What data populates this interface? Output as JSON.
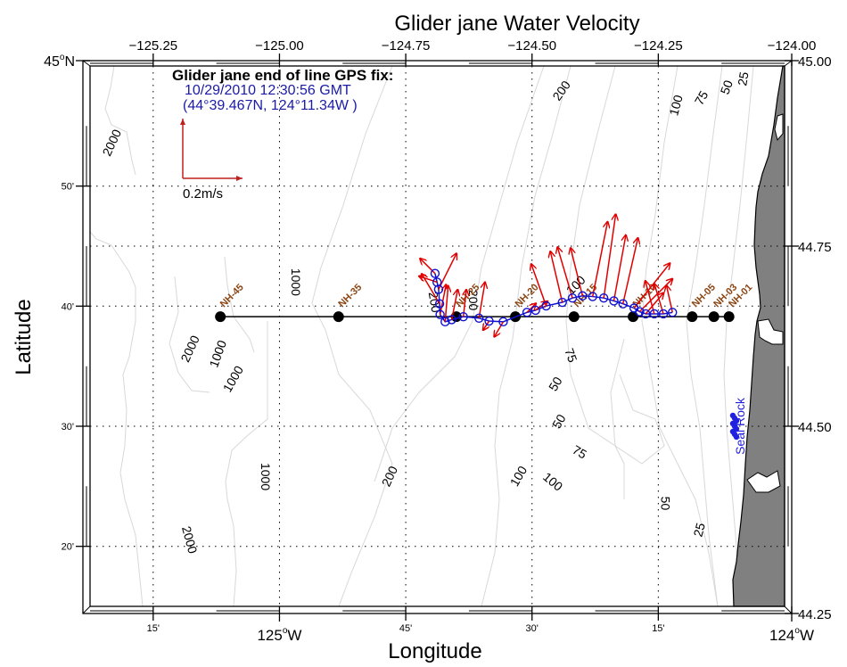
{
  "title": "Glider jane Water Velocity",
  "axes": {
    "xlabel": "Longitude",
    "ylabel": "Latitude",
    "lon_range": [
      -125.375,
      -124.0
    ],
    "lat_range": [
      44.25,
      45.0
    ],
    "top_ticks": [
      "−125.25",
      "−125.00",
      "−124.75",
      "−124.50",
      "−124.25",
      "−124.00"
    ],
    "top_tick_values": [
      -125.25,
      -125.0,
      -124.75,
      -124.5,
      -124.25,
      -124.0
    ],
    "right_ticks": [
      "45.00",
      "44.75",
      "44.50",
      "44.25"
    ],
    "right_tick_values": [
      45.0,
      44.75,
      44.5,
      44.25
    ],
    "bottom_minor_ticks": [
      {
        "value": -125.25,
        "label": "15'"
      },
      {
        "value": -124.75,
        "label": "45'"
      },
      {
        "value": -124.5,
        "label": "30'"
      },
      {
        "value": -124.25,
        "label": "15'"
      }
    ],
    "bottom_major_ticks": [
      {
        "value": -125.0,
        "label": "125",
        "suffix": "W"
      },
      {
        "value": -124.0,
        "label": "124",
        "suffix": "W"
      }
    ],
    "left_minor_ticks": [
      {
        "value": 44.8333,
        "label": "50'"
      },
      {
        "value": 44.6667,
        "label": "40'"
      },
      {
        "value": 44.5,
        "label": "30'"
      },
      {
        "value": 44.3333,
        "label": "20'"
      }
    ],
    "left_major_ticks": [
      {
        "value": 45.0,
        "label": "45",
        "suffix": "N"
      }
    ]
  },
  "gps_fix": {
    "heading": "Glider jane end of line GPS fix:",
    "datetime": "10/29/2010 12:30:56 GMT",
    "position": "(44°39.467N, 124°11.34W )"
  },
  "scale_arrow": {
    "label": "0.2m/s",
    "speed_mps": 0.2
  },
  "colors": {
    "track": "#1010d0",
    "vectors": "#e00000",
    "station_label": "#8b4513",
    "land": "#808080",
    "contour": "#d8d8d8",
    "gps_text": "#1a1aa6",
    "place_label": "#2020e0"
  },
  "stations": [
    {
      "name": "NH-45",
      "lon": -125.117,
      "lat": 44.652
    },
    {
      "name": "NH-35",
      "lon": -124.883,
      "lat": 44.652
    },
    {
      "name": "NH-25",
      "lon": -124.65,
      "lat": 44.652
    },
    {
      "name": "NH-20",
      "lon": -124.533,
      "lat": 44.652
    },
    {
      "name": "NH-15",
      "lon": -124.417,
      "lat": 44.652
    },
    {
      "name": "NH-10",
      "lon": -124.3,
      "lat": 44.652
    },
    {
      "name": "NH-05",
      "lon": -124.183,
      "lat": 44.652
    },
    {
      "name": "NH-03",
      "lon": -124.14,
      "lat": 44.652
    },
    {
      "name": "NH-01",
      "lon": -124.11,
      "lat": 44.652
    }
  ],
  "glider_track": [
    {
      "lon": -124.692,
      "lat": 44.712,
      "u": -0.05,
      "v": 0.05
    },
    {
      "lon": -124.688,
      "lat": 44.7,
      "u": -0.06,
      "v": 0.02
    },
    {
      "lon": -124.685,
      "lat": 44.69,
      "u": 0.06,
      "v": 0.12
    },
    {
      "lon": -124.683,
      "lat": 44.67,
      "u": -0.06,
      "v": 0.1
    },
    {
      "lon": -124.682,
      "lat": 44.655,
      "u": 0.02,
      "v": 0.1
    },
    {
      "lon": -124.672,
      "lat": 44.645,
      "u": 0.01,
      "v": 0.12
    },
    {
      "lon": -124.659,
      "lat": 44.648,
      "u": 0.02,
      "v": 0.1
    },
    {
      "lon": -124.636,
      "lat": 44.652,
      "u": 0.01,
      "v": 0.09
    },
    {
      "lon": -124.605,
      "lat": 44.65,
      "u": 0.02,
      "v": 0.12
    },
    {
      "lon": -124.585,
      "lat": 44.646,
      "u": -0.02,
      "v": -0.03
    },
    {
      "lon": -124.557,
      "lat": 44.645,
      "u": -0.03,
      "v": -0.05
    },
    {
      "lon": -124.51,
      "lat": 44.658,
      "u": 0.03,
      "v": 0.03
    },
    {
      "lon": -124.493,
      "lat": 44.661,
      "u": 0.04,
      "v": 0.03
    },
    {
      "lon": -124.472,
      "lat": 44.667,
      "u": -0.05,
      "v": 0.14
    },
    {
      "lon": -124.44,
      "lat": 44.672,
      "u": -0.04,
      "v": 0.17
    },
    {
      "lon": -124.42,
      "lat": 44.678,
      "u": -0.05,
      "v": 0.17
    },
    {
      "lon": -124.4,
      "lat": 44.681,
      "u": -0.04,
      "v": 0.16
    },
    {
      "lon": -124.38,
      "lat": 44.68,
      "u": 0.05,
      "v": 0.25
    },
    {
      "lon": -124.358,
      "lat": 44.678,
      "u": 0.04,
      "v": 0.28
    },
    {
      "lon": -124.338,
      "lat": 44.674,
      "u": 0.04,
      "v": 0.22
    },
    {
      "lon": -124.32,
      "lat": 44.67,
      "u": 0.05,
      "v": 0.22
    },
    {
      "lon": -124.298,
      "lat": 44.664,
      "u": 0.12,
      "v": 0.15
    },
    {
      "lon": -124.287,
      "lat": 44.659,
      "u": 0.11,
      "v": 0.11
    },
    {
      "lon": -124.275,
      "lat": 44.656,
      "u": 0.06,
      "v": 0.07
    },
    {
      "lon": -124.258,
      "lat": 44.656,
      "u": -0.03,
      "v": 0.11
    },
    {
      "lon": -124.24,
      "lat": 44.656,
      "u": -0.03,
      "v": 0.1
    },
    {
      "lon": -124.222,
      "lat": 44.658,
      "u": -0.02,
      "v": 0.09
    }
  ],
  "contour_labels": [
    {
      "text": "2000",
      "lon": -125.33,
      "lat": 44.893,
      "angle": -65
    },
    {
      "text": "1000",
      "lon": -124.97,
      "lat": 44.7,
      "angle": 90
    },
    {
      "text": "1000",
      "lon": -125.12,
      "lat": 44.6,
      "angle": -70
    },
    {
      "text": "2000",
      "lon": -125.175,
      "lat": 44.607,
      "angle": -65
    },
    {
      "text": "1000",
      "lon": -125.09,
      "lat": 44.565,
      "angle": -60
    },
    {
      "text": "1000",
      "lon": -125.03,
      "lat": 44.43,
      "angle": 90
    },
    {
      "text": "2000",
      "lon": -125.18,
      "lat": 44.342,
      "angle": 75
    },
    {
      "text": "200",
      "lon": -124.78,
      "lat": 44.43,
      "angle": -65
    },
    {
      "text": "200",
      "lon": -124.44,
      "lat": 44.965,
      "angle": -55
    },
    {
      "text": "100",
      "lon": -124.525,
      "lat": 44.43,
      "angle": -60
    },
    {
      "text": "100",
      "lon": -124.46,
      "lat": 44.422,
      "angle": 40
    },
    {
      "text": "75",
      "lon": -124.425,
      "lat": 44.598,
      "angle": 70
    },
    {
      "text": "50",
      "lon": -124.452,
      "lat": 44.558,
      "angle": -60
    },
    {
      "text": "50",
      "lon": -124.445,
      "lat": 44.506,
      "angle": -60
    },
    {
      "text": "75",
      "lon": -124.407,
      "lat": 44.463,
      "angle": 30
    },
    {
      "text": "50",
      "lon": -124.238,
      "lat": 44.393,
      "angle": 90
    },
    {
      "text": "25",
      "lon": -124.167,
      "lat": 44.356,
      "angle": -75
    },
    {
      "text": "100",
      "lon": -124.213,
      "lat": 44.945,
      "angle": -75
    },
    {
      "text": "75",
      "lon": -124.163,
      "lat": 44.955,
      "angle": -60
    },
    {
      "text": "50",
      "lon": -124.113,
      "lat": 44.97,
      "angle": -70
    },
    {
      "text": "25",
      "lon": -124.08,
      "lat": 44.982,
      "angle": -80
    },
    {
      "text": "100",
      "lon": -124.412,
      "lat": 44.695,
      "angle": -45
    },
    {
      "text": "200",
      "lon": -124.695,
      "lat": 44.672,
      "angle": 80
    },
    {
      "text": "200",
      "lon": -124.618,
      "lat": 44.675,
      "angle": 90
    }
  ],
  "place_labels": [
    {
      "name": "Seal Rock",
      "lon": -124.083,
      "lat": 44.5
    }
  ]
}
